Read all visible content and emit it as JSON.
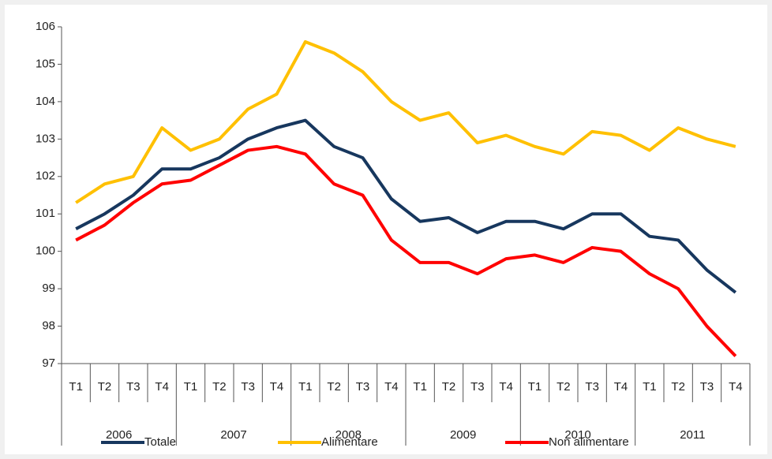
{
  "chart_data": {
    "type": "line",
    "categories": [
      "T1",
      "T2",
      "T3",
      "T4",
      "T1",
      "T2",
      "T3",
      "T4",
      "T1",
      "T2",
      "T3",
      "T4",
      "T1",
      "T2",
      "T3",
      "T4",
      "T1",
      "T2",
      "T3",
      "T4",
      "T1",
      "T2",
      "T3",
      "T4"
    ],
    "groups": [
      "2006",
      "2007",
      "2008",
      "2009",
      "2010",
      "2011"
    ],
    "series": [
      {
        "name": "Totale",
        "color": "#17375e",
        "values": [
          100.6,
          101.0,
          101.5,
          102.2,
          102.2,
          102.5,
          103.0,
          103.3,
          103.5,
          102.8,
          102.5,
          101.4,
          100.8,
          100.9,
          100.5,
          100.8,
          100.8,
          100.6,
          101.0,
          101.0,
          100.4,
          100.3,
          99.5,
          98.9
        ]
      },
      {
        "name": "Alimentare",
        "color": "#ffc000",
        "values": [
          101.3,
          101.8,
          102.0,
          103.3,
          102.7,
          103.0,
          103.8,
          104.2,
          105.6,
          105.3,
          104.8,
          104.0,
          103.5,
          103.7,
          102.9,
          103.1,
          102.8,
          102.6,
          103.2,
          103.1,
          102.7,
          103.3,
          103.0,
          102.8
        ]
      },
      {
        "name": "Non alimentare",
        "color": "#ff0000",
        "values": [
          100.3,
          100.7,
          101.3,
          101.8,
          101.9,
          102.3,
          102.7,
          102.8,
          102.6,
          101.8,
          101.5,
          100.3,
          99.7,
          99.7,
          99.4,
          99.8,
          99.9,
          99.7,
          100.1,
          100.0,
          99.4,
          99.0,
          98.0,
          97.2
        ]
      }
    ],
    "ylim": [
      97,
      106
    ],
    "yticks": [
      97,
      98,
      99,
      100,
      101,
      102,
      103,
      104,
      105,
      106
    ],
    "grid": false,
    "legend": "bottom"
  }
}
